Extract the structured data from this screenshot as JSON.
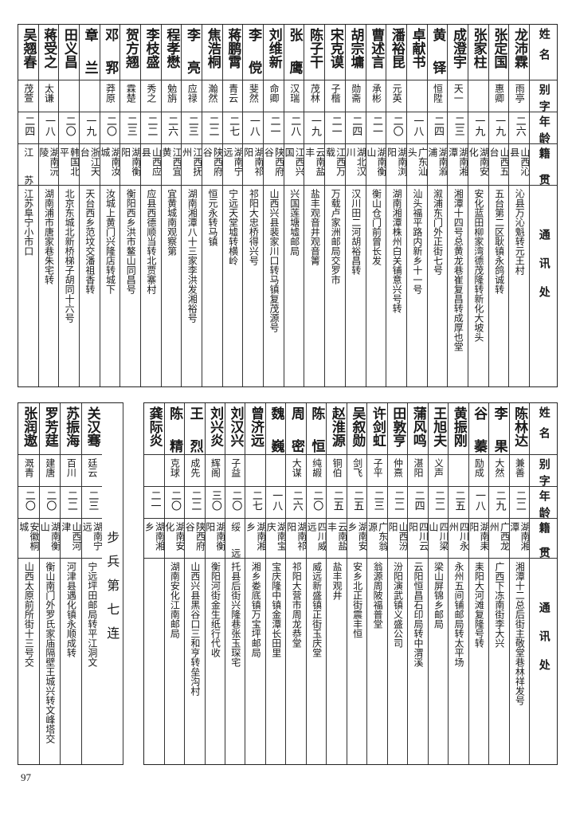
{
  "header": [
    "姓名",
    "别字",
    "年龄",
    "籍贯",
    "通讯处"
  ],
  "top_rows": [
    [
      "龙沛霖",
      "雨亭",
      "二六",
      "山西沁县",
      "沁县万沁魁转元王村"
    ],
    [
      "张定国",
      "惠卿",
      "一九",
      "山西五台",
      "五台第二区耿镇永鸽诚转"
    ],
    [
      "张家柱",
      "",
      "一九",
      "湖南安化",
      "安化蓝田柳家湾德茂隆转新化大坡头"
    ],
    [
      "成澄宇",
      "天一",
      "二三",
      "湖南湘潭",
      "湘潭十四号总黄龙巷崔复昌转成厚也堂"
    ],
    [
      "黄铎",
      "恒陞",
      "二四",
      "湖南溆浦",
      "溆浦东门外正街七号"
    ],
    [
      "卓献书",
      "",
      "一八",
      "广东汕头",
      "汕头福平路内新乡十一号"
    ],
    [
      "潘裕昆",
      "元英",
      "二〇",
      "湖南浏阳",
      "湖南湘潭株州白关铺意兴号转"
    ],
    [
      "曹述言",
      "承彬",
      "二一",
      "湖南衡山",
      "衡山仓门前曾长发"
    ],
    [
      "胡宗墉",
      "勋斋",
      "二四",
      "湖北汉川",
      "汉川田二河胡裕昌转"
    ],
    [
      "宋克谟",
      "子楷",
      "二一",
      "江西万载",
      "万载卢家洲邮局交罗市"
    ],
    [
      "陈子干",
      "茂林",
      "一九",
      "云南盐丰",
      "盐丰观音井观音箐"
    ],
    [
      "张鹰",
      "汉瑞",
      "二八",
      "江西兴国",
      "兴国莲塘墟邮局"
    ],
    [
      "刘维新",
      "命卿",
      "二一",
      "陕西府谷",
      "山西兴县裴家川口转马镇复茂源号"
    ],
    [
      "李傥",
      "斐然",
      "一八",
      "湖南祁阳",
      "祁阳大忠桥得兴号"
    ],
    [
      "蒋鹏霄",
      "青云",
      "二七",
      "湖南宁远",
      "宁远天堂墟转横岭"
    ],
    [
      "焦浩桐",
      "瀚然",
      "二二",
      "陕西府谷",
      "恒元永转马镇"
    ],
    [
      "李亮",
      "应禄",
      "二三",
      "江西抚州",
      "湖南湘潭八十三家李洪发湘裕号"
    ],
    [
      "程孝懋",
      "勉旃",
      "二六",
      "江西宜黄",
      "宜黄城南观察第"
    ],
    [
      "李枝盛",
      "秀之",
      "二二",
      "山西应县",
      "应县西德顺当转北贾寨村"
    ],
    [
      "贺方翘",
      "霖楚",
      "二三",
      "湖南衡阳",
      "衡阳西乡洪市鳌山同昌号"
    ],
    [
      "邓郛",
      "莽原",
      "二〇",
      "湖南汝城",
      "汝城上黄门兴隆店转城下"
    ],
    [
      "章兰",
      "",
      "一九",
      "浙江天台",
      "天台西乡范坟交潘祖香转"
    ],
    [
      "田义昌",
      "",
      "二〇",
      "韩国北平",
      "北京东城北新桥梯子胡同十六号"
    ],
    [
      "蒋受之",
      "太谦",
      "一八",
      "湖南沅陵",
      "湖南浦市唐家巷朱宅转"
    ],
    [
      "吴翘春",
      "茂萱",
      "二四",
      "江苏",
      "江苏阜宁小市口"
    ]
  ],
  "bottom_rows": [
    [
      "陈林达",
      "兼善",
      "二二",
      "湖南湘潭",
      "湘潭十二总后街主敬堂巷林祥发号"
    ],
    [
      "李果",
      "大然",
      "二九",
      "广西龙州",
      "广西下冻南街李大兴"
    ],
    [
      "谷蓁",
      "励成",
      "一八",
      "湖南耒阳",
      "耒阳大河滩复隆号转"
    ],
    [
      "黄振刚",
      "",
      "二五",
      "四川永州",
      "永州五间铺邮局转太平场"
    ],
    [
      "王旭夫",
      "义声",
      "二二",
      "四川梁山",
      "梁山屏锦乡邮局"
    ],
    [
      "蒲风鸣",
      "湛阳",
      "二四",
      "四川云阳",
      "云阳恒昌石印局转中渭溪"
    ],
    [
      "田敦亨",
      "仲熹",
      "二二",
      "山西汾阳",
      "汾阳演武镇义盛公司"
    ],
    [
      "许剑虹",
      "子平",
      "二三",
      "广东翁源",
      "翁源周陂福普堂"
    ],
    [
      "吴叙勋",
      "剑飞",
      "二五",
      "湖南安乡",
      "安乡北正街震丰恒"
    ],
    [
      "赵淮源",
      "铜伯",
      "二五",
      "云南盐丰",
      "盐丰观井"
    ],
    [
      "陈恒",
      "纯嘏",
      "二〇",
      "四川威远",
      "威远新盛镇正街玉庆堂"
    ],
    [
      "周密",
      "大谋",
      "二六",
      "湖南祁阳",
      "祁阳大营市周龙恭堂"
    ],
    [
      "魏巍",
      "",
      "一八",
      "湖南宝庆",
      "宝庆隆中镇金潭长田里"
    ],
    [
      "曾济远",
      "",
      "二七",
      "湖南湘乡",
      "湘乡娄底镇万宝坪邮局"
    ],
    [
      "刘汉兴",
      "子益",
      "二〇",
      "绥远",
      "托县后街兴隆巷张玉琛宅"
    ],
    [
      "刘兴炎",
      "辉阁",
      "三〇",
      "湖南衡阳",
      "衡阳河街金生纸行代收"
    ],
    [
      "王烈",
      "成先",
      "二二",
      "陕西府谷",
      "山西兴县黑谷口三和亨转垒沟村"
    ],
    [
      "陈精",
      "克球",
      "二〇",
      "湖南安化",
      "湖南安化江南邮局"
    ],
    [
      "龚际炎",
      "",
      "二一",
      "湖南湘乡",
      ""
    ]
  ],
  "unit_title": "步兵第七连",
  "left_rows": [
    [
      "关汉骞",
      "廷云",
      "二三",
      "湖南宁远",
      "宁远坪田邮局转平江洞文"
    ],
    [
      "苏振海",
      "百川",
      "二二",
      "山西河津",
      "河津县遇化镇永顺成转"
    ],
    [
      "罗芳莛",
      "建唐",
      "二〇",
      "湖南衡山",
      "衡山南门外罗氏家庙隔壁王城兴转文峰塔交"
    ],
    [
      "张润遨",
      "溉青",
      "二〇",
      "安徽桐城",
      "山西太原前所街十三号交"
    ]
  ],
  "page_number": "97"
}
